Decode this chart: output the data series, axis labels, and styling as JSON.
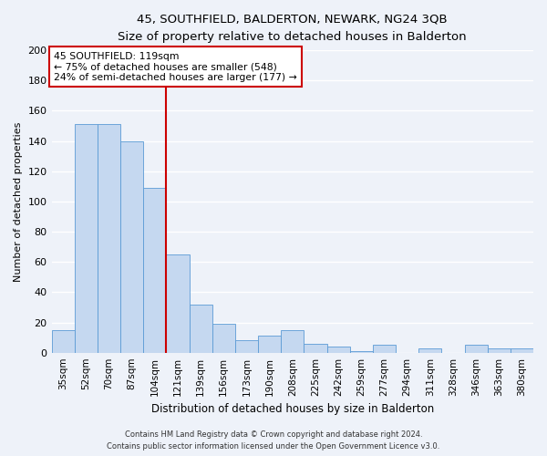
{
  "title": "45, SOUTHFIELD, BALDERTON, NEWARK, NG24 3QB",
  "subtitle": "Size of property relative to detached houses in Balderton",
  "xlabel": "Distribution of detached houses by size in Balderton",
  "ylabel": "Number of detached properties",
  "bar_labels": [
    "35sqm",
    "52sqm",
    "70sqm",
    "87sqm",
    "104sqm",
    "121sqm",
    "139sqm",
    "156sqm",
    "173sqm",
    "190sqm",
    "208sqm",
    "225sqm",
    "242sqm",
    "259sqm",
    "277sqm",
    "294sqm",
    "311sqm",
    "328sqm",
    "346sqm",
    "363sqm",
    "380sqm"
  ],
  "bar_values": [
    15,
    151,
    151,
    140,
    109,
    65,
    32,
    19,
    8,
    11,
    15,
    6,
    4,
    1,
    5,
    0,
    3,
    0,
    5,
    3,
    3
  ],
  "bar_color": "#c5d8f0",
  "bar_edge_color": "#5b9bd5",
  "ylim": [
    0,
    200
  ],
  "yticks": [
    0,
    20,
    40,
    60,
    80,
    100,
    120,
    140,
    160,
    180,
    200
  ],
  "vline_index": 5,
  "vline_color": "#cc0000",
  "annotation_title": "45 SOUTHFIELD: 119sqm",
  "annotation_line1": "← 75% of detached houses are smaller (548)",
  "annotation_line2": "24% of semi-detached houses are larger (177) →",
  "annotation_box_color": "#cc0000",
  "footer_line1": "Contains HM Land Registry data © Crown copyright and database right 2024.",
  "footer_line2": "Contains public sector information licensed under the Open Government Licence v3.0.",
  "background_color": "#eef2f9",
  "grid_color": "#ffffff"
}
